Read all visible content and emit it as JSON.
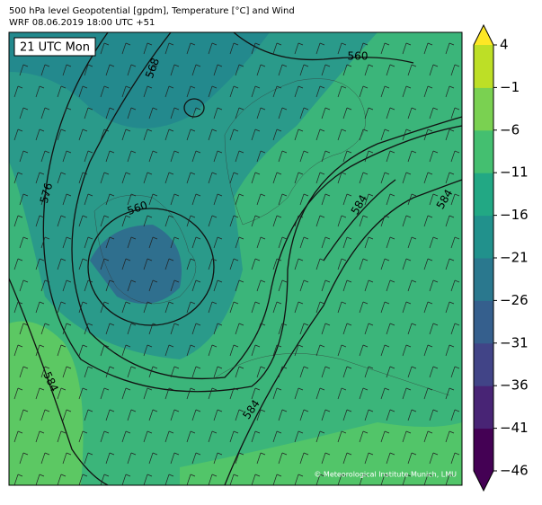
{
  "header": {
    "line1": "500 hPa level Geopotential [gpdm], Temperature [°C] and Wind",
    "line2": "WRF 08.06.2019 18:00 UTC +51"
  },
  "map": {
    "time_label": "21 UTC Mon",
    "copyright": "© Meteorological Institute Munich, LMU",
    "contour_labels": [
      "568",
      "560",
      "576",
      "560",
      "584",
      "584",
      "584",
      "584"
    ]
  },
  "colorbar": {
    "ticks": [
      4,
      {
        "value": -1,
        "label": "−1"
      },
      {
        "value": -6,
        "label": "−6"
      },
      {
        "value": -11,
        "label": "−11"
      },
      {
        "value": -16,
        "label": "−16"
      },
      {
        "value": -21,
        "label": "−21"
      },
      {
        "value": -26,
        "label": "−26"
      },
      {
        "value": -31,
        "label": "−31"
      },
      {
        "value": -36,
        "label": "−36"
      },
      {
        "value": -41,
        "label": "−41"
      },
      {
        "value": -46,
        "label": "−46"
      }
    ],
    "lim": [
      -46,
      4
    ],
    "colors": [
      "#440154",
      "#482475",
      "#414487",
      "#355f8d",
      "#2a788e",
      "#21918c",
      "#22a884",
      "#44bf70",
      "#7ad151",
      "#bddf26"
    ],
    "over_color": "#fde725",
    "under_color": "#440154"
  }
}
